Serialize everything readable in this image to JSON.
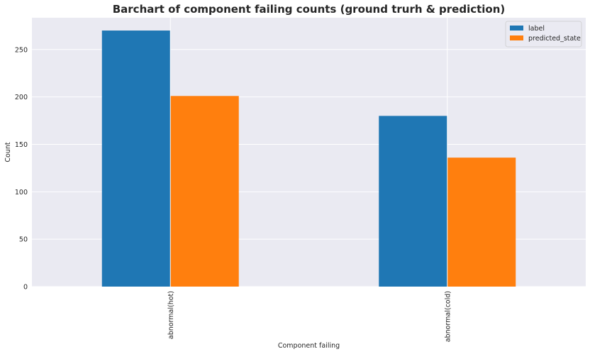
{
  "chart_data": {
    "type": "bar",
    "title": "Barchart of component failing counts (ground trurh & prediction)",
    "xlabel": "Component failing",
    "ylabel": "Count",
    "categories": [
      "abnormal(hot)",
      "abnormal(cold)"
    ],
    "series": [
      {
        "name": "label",
        "values": [
          270,
          180
        ],
        "color": "#1f77b4"
      },
      {
        "name": "predicted_state",
        "values": [
          201,
          136
        ],
        "color": "#ff7f0e"
      }
    ],
    "ylim": [
      0,
      283.5
    ],
    "yticks": [
      0,
      50,
      100,
      150,
      200,
      250
    ],
    "grid": true,
    "legend_placement": "top-right",
    "background_color": "#eaeaf2"
  }
}
